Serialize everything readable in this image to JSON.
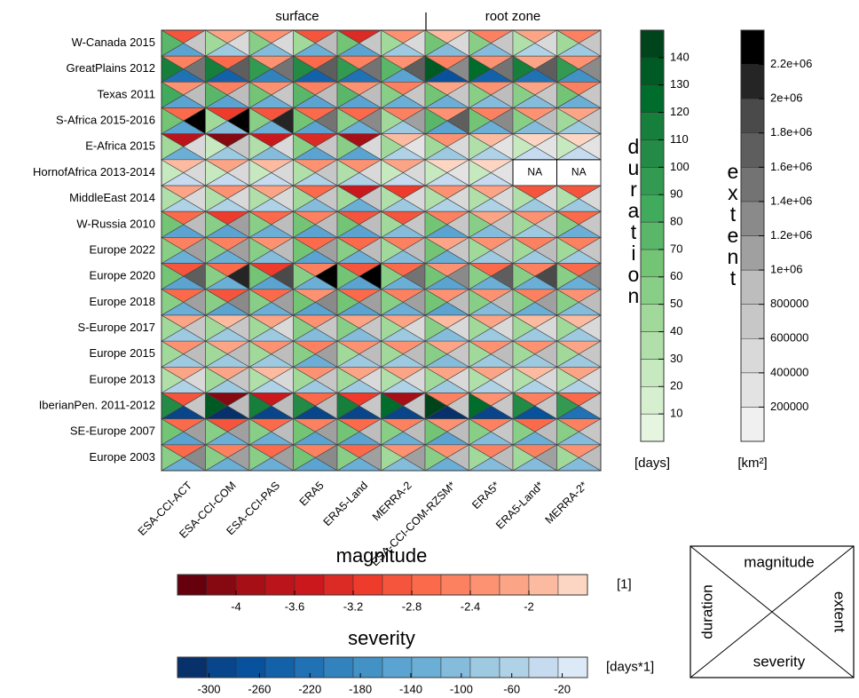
{
  "chart_data": {
    "type": "triangle-heatmap",
    "group_labels": [
      "surface",
      "root zone"
    ],
    "rows": [
      "W-Canada 2015",
      "GreatPlains 2012",
      "Texas 2011",
      "S-Africa 2015-2016",
      "E-Africa 2015",
      "HornofAfrica 2013-2014",
      "MiddleEast 2014",
      "W-Russia 2010",
      "Europe 2022",
      "Europe 2020",
      "Europe 2018",
      "S-Europe 2017",
      "Europe 2015",
      "Europe 2013",
      "IberianPen. 2011-2012",
      "SE-Europe 2007",
      "Europe 2003"
    ],
    "columns": [
      "ESA-CCI-ACT",
      "ESA-CCI-COM",
      "ESA-CCI-PAS",
      "ERA5",
      "ERA5-Land",
      "MERRA-2",
      "ESA-CCI-COM-RZSM*",
      "ERA5*",
      "ERA5-Land*",
      "MERRA-2*"
    ],
    "na_label": "NA",
    "magnitude": [
      [
        -3.0,
        -2.2,
        -2.4,
        -3.0,
        -3.4,
        -2.4,
        -2.0,
        -2.6,
        -2.2,
        -2.6
      ],
      [
        -2.6,
        -2.8,
        -2.4,
        -2.8,
        -2.6,
        -2.4,
        -2.6,
        -2.4,
        -2.2,
        -2.4
      ],
      [
        -2.4,
        -2.6,
        -2.4,
        -2.6,
        -2.4,
        -2.6,
        -2.2,
        -2.4,
        -2.2,
        -2.6
      ],
      [
        -2.8,
        -3.2,
        -3.0,
        -2.8,
        -2.8,
        -2.6,
        -2.4,
        -2.6,
        -2.4,
        -2.2
      ],
      [
        -3.8,
        -4.2,
        -3.6,
        -3.4,
        -4.0,
        -2.0,
        -2.4,
        -2.0,
        -1.8,
        -1.8
      ],
      [
        -2.0,
        -2.2,
        -2.0,
        -2.4,
        -2.4,
        -2.2,
        -1.8,
        -1.8,
        null,
        null
      ],
      [
        -2.2,
        -2.4,
        -2.2,
        -2.8,
        -3.6,
        -3.2,
        -2.4,
        -2.2,
        -3.0,
        -3.0
      ],
      [
        -2.8,
        -3.2,
        -2.8,
        -2.6,
        -3.0,
        -3.0,
        -2.6,
        -2.2,
        -2.4,
        -2.8
      ],
      [
        -2.6,
        -2.6,
        -2.4,
        -2.8,
        -2.8,
        -2.6,
        -2.2,
        -2.4,
        -2.6,
        -2.6
      ],
      [
        -3.0,
        -2.8,
        -3.2,
        -2.6,
        -3.0,
        -2.8,
        -2.4,
        -2.8,
        -2.6,
        -2.8
      ],
      [
        -2.8,
        -3.0,
        -2.8,
        -2.4,
        -2.8,
        -2.6,
        -2.4,
        -2.4,
        -2.6,
        -2.4
      ],
      [
        -2.2,
        -2.0,
        -2.2,
        -2.4,
        -2.2,
        -2.2,
        -2.0,
        -2.2,
        -2.0,
        -2.0
      ],
      [
        -2.4,
        -2.2,
        -2.4,
        -2.6,
        -2.4,
        -2.4,
        -2.2,
        -2.4,
        -2.4,
        -2.2
      ],
      [
        -2.2,
        -2.2,
        -2.0,
        -2.4,
        -2.2,
        -2.2,
        -2.2,
        -2.2,
        -2.0,
        -2.2
      ],
      [
        -3.0,
        -4.2,
        -3.6,
        -2.8,
        -3.2,
        -4.0,
        -2.6,
        -2.4,
        -2.6,
        -2.8
      ],
      [
        -2.8,
        -3.0,
        -2.8,
        -2.6,
        -2.8,
        -2.6,
        -2.4,
        -2.6,
        -2.8,
        -2.6
      ],
      [
        -2.8,
        -2.6,
        -2.8,
        -2.6,
        -2.8,
        -2.4,
        -2.4,
        -2.6,
        -2.6,
        -2.4
      ]
    ],
    "duration": [
      [
        70,
        40,
        50,
        40,
        60,
        40,
        60,
        50,
        30,
        40
      ],
      [
        110,
        110,
        90,
        100,
        90,
        70,
        130,
        120,
        110,
        90
      ],
      [
        80,
        70,
        60,
        70,
        70,
        50,
        60,
        50,
        50,
        60
      ],
      [
        60,
        40,
        50,
        60,
        50,
        40,
        70,
        60,
        50,
        40
      ],
      [
        40,
        20,
        30,
        50,
        50,
        40,
        40,
        30,
        20,
        20
      ],
      [
        20,
        20,
        20,
        30,
        30,
        20,
        20,
        20,
        null,
        null
      ],
      [
        30,
        30,
        30,
        40,
        40,
        30,
        30,
        30,
        30,
        30
      ],
      [
        60,
        50,
        50,
        60,
        60,
        40,
        60,
        50,
        40,
        50
      ],
      [
        50,
        50,
        50,
        60,
        50,
        40,
        60,
        40,
        40,
        40
      ],
      [
        60,
        50,
        60,
        50,
        60,
        50,
        60,
        50,
        50,
        50
      ],
      [
        50,
        50,
        50,
        60,
        60,
        50,
        60,
        50,
        50,
        50
      ],
      [
        40,
        40,
        40,
        50,
        50,
        40,
        50,
        40,
        40,
        40
      ],
      [
        40,
        40,
        40,
        50,
        40,
        40,
        50,
        40,
        40,
        40
      ],
      [
        30,
        40,
        30,
        40,
        40,
        30,
        40,
        30,
        30,
        30
      ],
      [
        100,
        130,
        110,
        100,
        110,
        120,
        140,
        120,
        100,
        90
      ],
      [
        60,
        50,
        50,
        60,
        60,
        50,
        60,
        50,
        50,
        50
      ],
      [
        50,
        50,
        50,
        60,
        50,
        40,
        50,
        40,
        40,
        40
      ]
    ],
    "extent": [
      [
        600000,
        400000,
        400000,
        800000,
        600000,
        400000,
        400000,
        600000,
        400000,
        600000
      ],
      [
        1400000,
        1600000,
        1400000,
        1600000,
        1400000,
        1600000,
        1200000,
        1400000,
        1600000,
        1200000
      ],
      [
        800000,
        800000,
        600000,
        800000,
        800000,
        600000,
        600000,
        800000,
        600000,
        600000
      ],
      [
        2200000,
        2400000,
        2000000,
        1400000,
        1200000,
        1000000,
        1600000,
        1200000,
        800000,
        600000
      ],
      [
        400000,
        600000,
        400000,
        600000,
        400000,
        200000,
        400000,
        200000,
        200000,
        200000
      ],
      [
        400000,
        400000,
        400000,
        600000,
        400000,
        400000,
        200000,
        200000,
        null,
        null
      ],
      [
        400000,
        400000,
        400000,
        600000,
        600000,
        400000,
        400000,
        400000,
        400000,
        400000
      ],
      [
        800000,
        1000000,
        800000,
        800000,
        800000,
        600000,
        600000,
        600000,
        600000,
        600000
      ],
      [
        1000000,
        1000000,
        800000,
        1000000,
        800000,
        800000,
        600000,
        600000,
        800000,
        600000
      ],
      [
        1600000,
        2000000,
        1800000,
        2400000,
        2200000,
        1400000,
        1200000,
        1600000,
        1800000,
        1200000
      ],
      [
        1000000,
        1200000,
        1000000,
        1200000,
        1000000,
        1000000,
        800000,
        800000,
        1000000,
        800000
      ],
      [
        600000,
        600000,
        400000,
        600000,
        600000,
        400000,
        400000,
        400000,
        400000,
        400000
      ],
      [
        800000,
        800000,
        800000,
        1000000,
        800000,
        800000,
        600000,
        800000,
        800000,
        600000
      ],
      [
        400000,
        600000,
        400000,
        600000,
        400000,
        400000,
        400000,
        400000,
        400000,
        400000
      ],
      [
        600000,
        800000,
        800000,
        800000,
        600000,
        600000,
        600000,
        600000,
        600000,
        600000
      ],
      [
        1000000,
        1000000,
        800000,
        1000000,
        800000,
        800000,
        800000,
        600000,
        800000,
        600000
      ],
      [
        1200000,
        1000000,
        1000000,
        1200000,
        1000000,
        1000000,
        800000,
        800000,
        1000000,
        800000
      ]
    ],
    "severity": [
      [
        -140,
        -80,
        -100,
        -120,
        -160,
        -80,
        -100,
        -100,
        -60,
        -80
      ],
      [
        -220,
        -240,
        -200,
        -240,
        -220,
        -160,
        -260,
        -240,
        -220,
        -180
      ],
      [
        -160,
        -140,
        -120,
        -160,
        -140,
        -120,
        -120,
        -100,
        -100,
        -120
      ],
      [
        -140,
        -100,
        -120,
        -140,
        -120,
        -80,
        -140,
        -120,
        -100,
        -80
      ],
      [
        -120,
        -80,
        -100,
        -140,
        -160,
        -60,
        -80,
        -60,
        -40,
        -40
      ],
      [
        -40,
        -40,
        -40,
        -60,
        -60,
        -40,
        -40,
        -40,
        null,
        null
      ],
      [
        -60,
        -60,
        -60,
        -100,
        -120,
        -80,
        -60,
        -60,
        -80,
        -80
      ],
      [
        -140,
        -140,
        -120,
        -140,
        -160,
        -100,
        -140,
        -100,
        -80,
        -120
      ],
      [
        -120,
        -120,
        -100,
        -140,
        -120,
        -100,
        -120,
        -80,
        -80,
        -80
      ],
      [
        -160,
        -120,
        -160,
        -120,
        -160,
        -120,
        -140,
        -120,
        -120,
        -120
      ],
      [
        -120,
        -140,
        -120,
        -140,
        -140,
        -120,
        -140,
        -100,
        -120,
        -100
      ],
      [
        -80,
        -80,
        -80,
        -100,
        -100,
        -80,
        -100,
        -80,
        -80,
        -80
      ],
      [
        -80,
        -80,
        -80,
        -120,
        -80,
        -80,
        -100,
        -80,
        -80,
        -80
      ],
      [
        -60,
        -80,
        -60,
        -80,
        -80,
        -60,
        -80,
        -60,
        -60,
        -60
      ],
      [
        -280,
        -320,
        -300,
        -280,
        -280,
        -300,
        -320,
        -280,
        -260,
        -220
      ],
      [
        -140,
        -120,
        -120,
        -140,
        -140,
        -120,
        -140,
        -100,
        -120,
        -100
      ],
      [
        -120,
        -120,
        -120,
        -140,
        -120,
        -100,
        -120,
        -100,
        -100,
        -100
      ]
    ],
    "colorbars": {
      "magnitude": {
        "title": "magnitude",
        "unit": "[1]",
        "lim": [
          -4.4,
          -1.6
        ],
        "ticks": [
          -4,
          -3.6,
          -3.2,
          -2.8,
          -2.4,
          -2
        ],
        "colors": [
          "#67000d",
          "#860811",
          "#a50f15",
          "#bb141a",
          "#cb181d",
          "#dc2a25",
          "#ef3b2c",
          "#f6553d",
          "#fb6a4a",
          "#fc8161",
          "#fc9272",
          "#fca486",
          "#fcbba1",
          "#fdd5c3"
        ]
      },
      "severity": {
        "title": "severity",
        "unit": "[days*1]",
        "lim": [
          -325,
          0
        ],
        "ticks": [
          -300,
          -260,
          -220,
          -180,
          -140,
          -100,
          -60,
          -20
        ],
        "colors": [
          "#08306b",
          "#08458a",
          "#08519c",
          "#1361a9",
          "#2171b5",
          "#3282be",
          "#4292c6",
          "#5ba3d0",
          "#6baed6",
          "#85bcdc",
          "#9ecae1",
          "#b0d2e7",
          "#c6dbef",
          "#dce9f6"
        ]
      },
      "duration": {
        "title": "duration",
        "unit": "[days]",
        "lim": [
          0,
          150
        ],
        "ticks": [
          10,
          20,
          30,
          40,
          50,
          60,
          70,
          80,
          90,
          100,
          110,
          120,
          130,
          140
        ],
        "colors": [
          "#e5f5e0",
          "#d5efcf",
          "#c7e9c0",
          "#b0dfaa",
          "#a1d99b",
          "#88ce87",
          "#74c476",
          "#5ab769",
          "#41ab5d",
          "#329b51",
          "#238b45",
          "#157f3b",
          "#006d2c",
          "#005a24",
          "#00441b"
        ]
      },
      "extent": {
        "title": "extent",
        "unit": "[km²]",
        "lim": [
          0,
          2400000
        ],
        "ticks": [
          200000,
          400000,
          600000,
          800000,
          {
            "value": 1000000,
            "label": "1e+06"
          },
          {
            "value": 1200000,
            "label": "1.2e+06"
          },
          {
            "value": 1400000,
            "label": "1.4e+06"
          },
          {
            "value": 1600000,
            "label": "1.6e+06"
          },
          {
            "value": 1800000,
            "label": "1.8e+06"
          },
          {
            "value": 2000000,
            "label": "2e+06"
          },
          {
            "value": 2200000,
            "label": "2.2e+06"
          }
        ],
        "colors": [
          "#f0f0f0",
          "#e3e3e3",
          "#d9d9d9",
          "#c7c7c7",
          "#bdbdbd",
          "#a0a0a0",
          "#8a8a8a",
          "#737373",
          "#5e5e5e",
          "#4a4a4a",
          "#252525",
          "#000000"
        ]
      }
    },
    "legend": {
      "top": "magnitude",
      "left": "duration",
      "right": "extent",
      "bottom": "severity"
    }
  }
}
